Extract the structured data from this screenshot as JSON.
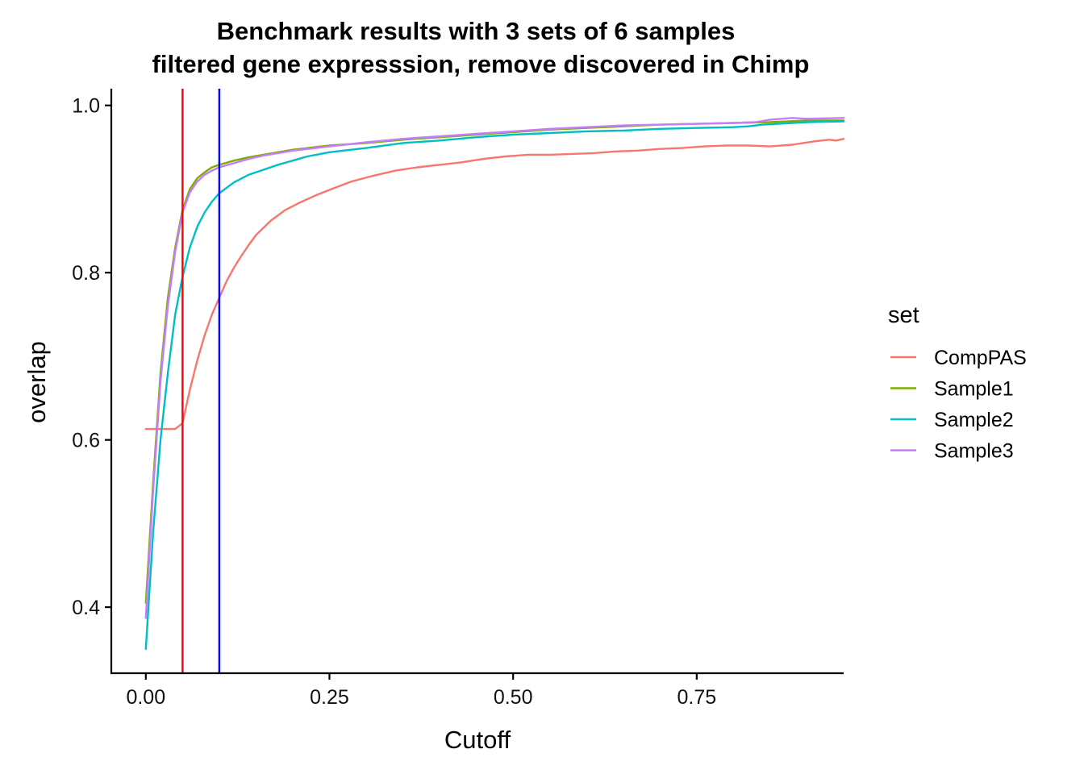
{
  "chart_data": {
    "type": "line",
    "title": "Benchmark results with 3 sets of 6 samples",
    "subtitle": "filtered gene expresssion, remove discovered in Chimp",
    "xlabel": "Cutoff",
    "ylabel": "overlap",
    "xlim": [
      -0.047,
      0.95
    ],
    "ylim": [
      0.321,
      1.02
    ],
    "x_ticks": [
      0.0,
      0.25,
      0.5,
      0.75
    ],
    "x_tick_labels": [
      "0.00",
      "0.25",
      "0.50",
      "0.75"
    ],
    "y_ticks": [
      0.4,
      0.6,
      0.8,
      1.0
    ],
    "y_tick_labels": [
      "0.4",
      "0.6",
      "0.8",
      "1.0"
    ],
    "grid": false,
    "legend": {
      "title": "set",
      "position": "right"
    },
    "vlines": [
      {
        "x": 0.05,
        "color": "#ff0000"
      },
      {
        "x": 0.1,
        "color": "#0000ff"
      }
    ],
    "series": [
      {
        "name": "CompPAS",
        "color": "#f8766d",
        "x": [
          0.0,
          0.01,
          0.02,
          0.03,
          0.04,
          0.05,
          0.06,
          0.07,
          0.08,
          0.09,
          0.1,
          0.11,
          0.12,
          0.13,
          0.14,
          0.15,
          0.17,
          0.19,
          0.21,
          0.23,
          0.25,
          0.28,
          0.31,
          0.34,
          0.37,
          0.4,
          0.43,
          0.46,
          0.49,
          0.52,
          0.55,
          0.58,
          0.61,
          0.64,
          0.67,
          0.7,
          0.73,
          0.76,
          0.79,
          0.82,
          0.85,
          0.88,
          0.91,
          0.93,
          0.94,
          0.95
        ],
        "values": [
          0.613,
          0.613,
          0.613,
          0.613,
          0.613,
          0.62,
          0.66,
          0.695,
          0.725,
          0.75,
          0.77,
          0.79,
          0.806,
          0.82,
          0.833,
          0.845,
          0.862,
          0.875,
          0.884,
          0.892,
          0.899,
          0.909,
          0.916,
          0.922,
          0.926,
          0.929,
          0.932,
          0.936,
          0.939,
          0.941,
          0.941,
          0.942,
          0.943,
          0.945,
          0.946,
          0.948,
          0.949,
          0.951,
          0.952,
          0.952,
          0.951,
          0.953,
          0.957,
          0.959,
          0.958,
          0.96
        ]
      },
      {
        "name": "Sample1",
        "color": "#7cae00",
        "x": [
          0.0,
          0.01,
          0.02,
          0.03,
          0.04,
          0.05,
          0.06,
          0.07,
          0.08,
          0.09,
          0.1,
          0.12,
          0.14,
          0.16,
          0.18,
          0.2,
          0.25,
          0.3,
          0.35,
          0.4,
          0.45,
          0.5,
          0.55,
          0.6,
          0.65,
          0.7,
          0.75,
          0.8,
          0.85,
          0.9,
          0.95
        ],
        "values": [
          0.405,
          0.55,
          0.68,
          0.77,
          0.83,
          0.875,
          0.9,
          0.913,
          0.92,
          0.926,
          0.929,
          0.934,
          0.938,
          0.941,
          0.944,
          0.947,
          0.952,
          0.955,
          0.959,
          0.962,
          0.965,
          0.968,
          0.971,
          0.973,
          0.975,
          0.977,
          0.978,
          0.979,
          0.98,
          0.982,
          0.982
        ]
      },
      {
        "name": "Sample2",
        "color": "#00bfc4",
        "x": [
          0.0,
          0.01,
          0.02,
          0.03,
          0.04,
          0.05,
          0.06,
          0.07,
          0.08,
          0.09,
          0.1,
          0.12,
          0.14,
          0.16,
          0.18,
          0.2,
          0.22,
          0.25,
          0.3,
          0.35,
          0.4,
          0.45,
          0.5,
          0.55,
          0.6,
          0.65,
          0.7,
          0.75,
          0.8,
          0.82,
          0.84,
          0.86,
          0.9,
          0.95
        ],
        "values": [
          0.35,
          0.49,
          0.6,
          0.68,
          0.75,
          0.795,
          0.83,
          0.855,
          0.872,
          0.885,
          0.895,
          0.908,
          0.917,
          0.923,
          0.929,
          0.934,
          0.939,
          0.944,
          0.949,
          0.955,
          0.958,
          0.962,
          0.965,
          0.967,
          0.969,
          0.97,
          0.972,
          0.973,
          0.974,
          0.975,
          0.977,
          0.978,
          0.98,
          0.981
        ]
      },
      {
        "name": "Sample3",
        "color": "#c77cff",
        "x": [
          0.0,
          0.01,
          0.02,
          0.03,
          0.04,
          0.05,
          0.06,
          0.07,
          0.08,
          0.09,
          0.1,
          0.12,
          0.14,
          0.16,
          0.18,
          0.2,
          0.25,
          0.3,
          0.35,
          0.4,
          0.45,
          0.5,
          0.55,
          0.6,
          0.65,
          0.7,
          0.75,
          0.8,
          0.83,
          0.85,
          0.88,
          0.9,
          0.95
        ],
        "values": [
          0.387,
          0.54,
          0.67,
          0.76,
          0.825,
          0.872,
          0.896,
          0.909,
          0.917,
          0.922,
          0.926,
          0.931,
          0.936,
          0.94,
          0.943,
          0.946,
          0.951,
          0.956,
          0.96,
          0.963,
          0.966,
          0.969,
          0.972,
          0.974,
          0.976,
          0.977,
          0.978,
          0.979,
          0.98,
          0.983,
          0.985,
          0.984,
          0.985
        ]
      }
    ]
  }
}
